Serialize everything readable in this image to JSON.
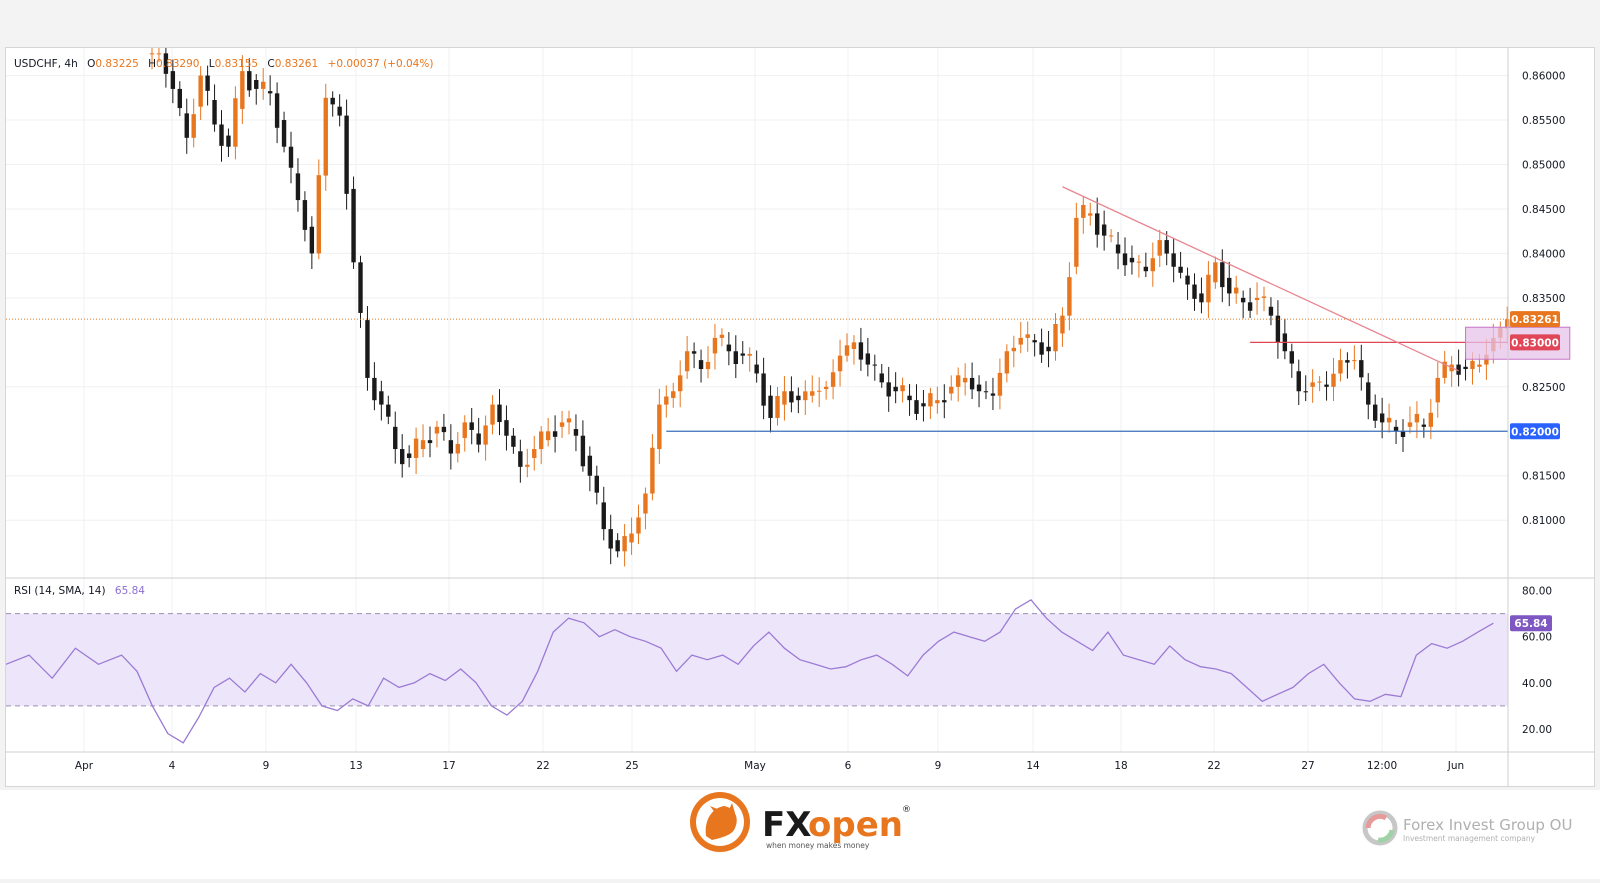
{
  "chart_data": {
    "type": "candlestick",
    "symbol": "USDCHF",
    "timeframe": "4h",
    "ohlc_header": {
      "o_label": "O",
      "o": "0.83225",
      "h_label": "H",
      "h": "0.83290",
      "l_label": "L",
      "l": "0.83155",
      "c_label": "C",
      "c": "0.83261",
      "change": "+0.00037 (+0.04%)"
    },
    "price_axis": {
      "ticks": [
        "0.86000",
        "0.85500",
        "0.85000",
        "0.84500",
        "0.84000",
        "0.83500",
        "0.82500",
        "0.81500",
        "0.81000"
      ],
      "ylim": [
        0.8035,
        0.8631
      ]
    },
    "time_axis": {
      "labels": [
        "Apr",
        "4",
        "9",
        "13",
        "17",
        "22",
        "25",
        "May",
        "6",
        "9",
        "14",
        "18",
        "22",
        "27",
        "12:00",
        "Jun"
      ]
    },
    "price_markers": [
      {
        "value": "0.83261",
        "color": "#e8761e",
        "type": "last-price"
      },
      {
        "value": "0.83000",
        "color": "#e04658",
        "type": "resistance-level"
      },
      {
        "value": "0.82000",
        "color": "#2962ff",
        "type": "support-level"
      }
    ],
    "close_series": [
      {
        "x": 0,
        "c": 0.8625
      },
      {
        "x": 2,
        "c": 0.8585
      },
      {
        "x": 4,
        "c": 0.853
      },
      {
        "x": 6,
        "c": 0.86
      },
      {
        "x": 8,
        "c": 0.8545
      },
      {
        "x": 10,
        "c": 0.852
      },
      {
        "x": 12,
        "c": 0.8605
      },
      {
        "x": 14,
        "c": 0.8585
      },
      {
        "x": 16,
        "c": 0.858
      },
      {
        "x": 18,
        "c": 0.852
      },
      {
        "x": 20,
        "c": 0.846
      },
      {
        "x": 22,
        "c": 0.84
      },
      {
        "x": 24,
        "c": 0.8575
      },
      {
        "x": 26,
        "c": 0.8555
      },
      {
        "x": 28,
        "c": 0.839
      },
      {
        "x": 30,
        "c": 0.826
      },
      {
        "x": 32,
        "c": 0.823
      },
      {
        "x": 34,
        "c": 0.818
      },
      {
        "x": 36,
        "c": 0.817
      },
      {
        "x": 38,
        "c": 0.819
      },
      {
        "x": 40,
        "c": 0.8205
      },
      {
        "x": 42,
        "c": 0.8175
      },
      {
        "x": 44,
        "c": 0.821
      },
      {
        "x": 46,
        "c": 0.8185
      },
      {
        "x": 48,
        "c": 0.823
      },
      {
        "x": 50,
        "c": 0.8195
      },
      {
        "x": 52,
        "c": 0.816
      },
      {
        "x": 54,
        "c": 0.818
      },
      {
        "x": 56,
        "c": 0.82
      },
      {
        "x": 58,
        "c": 0.821
      },
      {
        "x": 60,
        "c": 0.8195
      },
      {
        "x": 62,
        "c": 0.815
      },
      {
        "x": 64,
        "c": 0.809
      },
      {
        "x": 66,
        "c": 0.8065
      },
      {
        "x": 68,
        "c": 0.8085
      },
      {
        "x": 70,
        "c": 0.813
      },
      {
        "x": 72,
        "c": 0.823
      },
      {
        "x": 74,
        "c": 0.8245
      },
      {
        "x": 76,
        "c": 0.829
      },
      {
        "x": 78,
        "c": 0.827
      },
      {
        "x": 80,
        "c": 0.8305
      },
      {
        "x": 82,
        "c": 0.829
      },
      {
        "x": 84,
        "c": 0.8285
      },
      {
        "x": 86,
        "c": 0.8265
      },
      {
        "x": 88,
        "c": 0.8215
      },
      {
        "x": 90,
        "c": 0.8245
      },
      {
        "x": 92,
        "c": 0.8235
      },
      {
        "x": 94,
        "c": 0.8245
      },
      {
        "x": 96,
        "c": 0.825
      },
      {
        "x": 98,
        "c": 0.8285
      },
      {
        "x": 100,
        "c": 0.83
      },
      {
        "x": 102,
        "c": 0.8275
      },
      {
        "x": 104,
        "c": 0.8255
      },
      {
        "x": 106,
        "c": 0.8245
      },
      {
        "x": 108,
        "c": 0.8235
      },
      {
        "x": 110,
        "c": 0.8228
      },
      {
        "x": 112,
        "c": 0.8235
      },
      {
        "x": 114,
        "c": 0.825
      },
      {
        "x": 116,
        "c": 0.826
      },
      {
        "x": 118,
        "c": 0.8245
      },
      {
        "x": 120,
        "c": 0.824
      },
      {
        "x": 122,
        "c": 0.829
      },
      {
        "x": 124,
        "c": 0.8305
      },
      {
        "x": 126,
        "c": 0.83
      },
      {
        "x": 128,
        "c": 0.829
      },
      {
        "x": 130,
        "c": 0.833
      },
      {
        "x": 132,
        "c": 0.844
      },
      {
        "x": 134,
        "c": 0.8445
      },
      {
        "x": 136,
        "c": 0.842
      },
      {
        "x": 138,
        "c": 0.84
      },
      {
        "x": 140,
        "c": 0.839
      },
      {
        "x": 142,
        "c": 0.838
      },
      {
        "x": 144,
        "c": 0.8415
      },
      {
        "x": 146,
        "c": 0.8385
      },
      {
        "x": 148,
        "c": 0.8365
      },
      {
        "x": 150,
        "c": 0.8345
      },
      {
        "x": 152,
        "c": 0.839
      },
      {
        "x": 154,
        "c": 0.8355
      },
      {
        "x": 156,
        "c": 0.8345
      },
      {
        "x": 158,
        "c": 0.835
      },
      {
        "x": 160,
        "c": 0.833
      },
      {
        "x": 162,
        "c": 0.829
      },
      {
        "x": 164,
        "c": 0.8245
      },
      {
        "x": 166,
        "c": 0.8255
      },
      {
        "x": 168,
        "c": 0.825
      },
      {
        "x": 170,
        "c": 0.828
      },
      {
        "x": 172,
        "c": 0.828
      },
      {
        "x": 174,
        "c": 0.823
      },
      {
        "x": 176,
        "c": 0.821
      },
      {
        "x": 178,
        "c": 0.82
      },
      {
        "x": 180,
        "c": 0.821
      },
      {
        "x": 182,
        "c": 0.8205
      },
      {
        "x": 184,
        "c": 0.826
      },
      {
        "x": 186,
        "c": 0.8275
      },
      {
        "x": 188,
        "c": 0.827
      },
      {
        "x": 190,
        "c": 0.8275
      },
      {
        "x": 192,
        "c": 0.8305
      },
      {
        "x": 194,
        "c": 0.8326
      }
    ],
    "trendline": {
      "start": {
        "x": 131,
        "y": 0.8475
      },
      "end": {
        "x": 188,
        "y": 0.8268
      }
    },
    "resistance_zone": {
      "y_top": 0.8317,
      "y_bottom": 0.8281
    },
    "rsi": {
      "label": "RSI (14, SMA, 14)",
      "value": "65.84",
      "ticks": [
        "80.00",
        "60.00",
        "40.00",
        "20.00"
      ],
      "ylim": [
        10,
        85
      ],
      "upper_band": 70,
      "lower_band": 30,
      "series": [
        {
          "x": 0,
          "v": 48
        },
        {
          "x": 3,
          "v": 52
        },
        {
          "x": 6,
          "v": 42
        },
        {
          "x": 9,
          "v": 55
        },
        {
          "x": 12,
          "v": 48
        },
        {
          "x": 15,
          "v": 52
        },
        {
          "x": 17,
          "v": 45
        },
        {
          "x": 19,
          "v": 30
        },
        {
          "x": 21,
          "v": 18
        },
        {
          "x": 23,
          "v": 14
        },
        {
          "x": 25,
          "v": 25
        },
        {
          "x": 27,
          "v": 38
        },
        {
          "x": 29,
          "v": 42
        },
        {
          "x": 31,
          "v": 36
        },
        {
          "x": 33,
          "v": 44
        },
        {
          "x": 35,
          "v": 40
        },
        {
          "x": 37,
          "v": 48
        },
        {
          "x": 39,
          "v": 40
        },
        {
          "x": 41,
          "v": 30
        },
        {
          "x": 43,
          "v": 28
        },
        {
          "x": 45,
          "v": 33
        },
        {
          "x": 47,
          "v": 30
        },
        {
          "x": 49,
          "v": 42
        },
        {
          "x": 51,
          "v": 38
        },
        {
          "x": 53,
          "v": 40
        },
        {
          "x": 55,
          "v": 44
        },
        {
          "x": 57,
          "v": 41
        },
        {
          "x": 59,
          "v": 46
        },
        {
          "x": 61,
          "v": 40
        },
        {
          "x": 63,
          "v": 30
        },
        {
          "x": 65,
          "v": 26
        },
        {
          "x": 67,
          "v": 32
        },
        {
          "x": 69,
          "v": 45
        },
        {
          "x": 71,
          "v": 62
        },
        {
          "x": 73,
          "v": 68
        },
        {
          "x": 75,
          "v": 66
        },
        {
          "x": 77,
          "v": 60
        },
        {
          "x": 79,
          "v": 63
        },
        {
          "x": 81,
          "v": 60
        },
        {
          "x": 83,
          "v": 58
        },
        {
          "x": 85,
          "v": 55
        },
        {
          "x": 87,
          "v": 45
        },
        {
          "x": 89,
          "v": 52
        },
        {
          "x": 91,
          "v": 50
        },
        {
          "x": 93,
          "v": 52
        },
        {
          "x": 95,
          "v": 48
        },
        {
          "x": 97,
          "v": 56
        },
        {
          "x": 99,
          "v": 62
        },
        {
          "x": 101,
          "v": 55
        },
        {
          "x": 103,
          "v": 50
        },
        {
          "x": 105,
          "v": 48
        },
        {
          "x": 107,
          "v": 46
        },
        {
          "x": 109,
          "v": 47
        },
        {
          "x": 111,
          "v": 50
        },
        {
          "x": 113,
          "v": 52
        },
        {
          "x": 115,
          "v": 48
        },
        {
          "x": 117,
          "v": 43
        },
        {
          "x": 119,
          "v": 52
        },
        {
          "x": 121,
          "v": 58
        },
        {
          "x": 123,
          "v": 62
        },
        {
          "x": 125,
          "v": 60
        },
        {
          "x": 127,
          "v": 58
        },
        {
          "x": 129,
          "v": 62
        },
        {
          "x": 131,
          "v": 72
        },
        {
          "x": 133,
          "v": 76
        },
        {
          "x": 135,
          "v": 68
        },
        {
          "x": 137,
          "v": 62
        },
        {
          "x": 139,
          "v": 58
        },
        {
          "x": 141,
          "v": 54
        },
        {
          "x": 143,
          "v": 62
        },
        {
          "x": 145,
          "v": 52
        },
        {
          "x": 147,
          "v": 50
        },
        {
          "x": 149,
          "v": 48
        },
        {
          "x": 151,
          "v": 56
        },
        {
          "x": 153,
          "v": 50
        },
        {
          "x": 155,
          "v": 47
        },
        {
          "x": 157,
          "v": 46
        },
        {
          "x": 159,
          "v": 44
        },
        {
          "x": 161,
          "v": 38
        },
        {
          "x": 163,
          "v": 32
        },
        {
          "x": 165,
          "v": 35
        },
        {
          "x": 167,
          "v": 38
        },
        {
          "x": 169,
          "v": 44
        },
        {
          "x": 171,
          "v": 48
        },
        {
          "x": 173,
          "v": 40
        },
        {
          "x": 175,
          "v": 33
        },
        {
          "x": 177,
          "v": 32
        },
        {
          "x": 179,
          "v": 35
        },
        {
          "x": 181,
          "v": 34
        },
        {
          "x": 183,
          "v": 52
        },
        {
          "x": 185,
          "v": 57
        },
        {
          "x": 187,
          "v": 55
        },
        {
          "x": 189,
          "v": 58
        },
        {
          "x": 191,
          "v": 62
        },
        {
          "x": 193,
          "v": 65.84
        }
      ]
    }
  },
  "footer": {
    "brand": "FXopen",
    "brand_reg": "®",
    "tagline": "when money makes money",
    "partner_name": "Forex Invest Group OU",
    "partner_sub": "Investment management company"
  },
  "colors": {
    "bull": "#e8761e",
    "bear": "#1a1a1a",
    "trendline": "#e8868f",
    "resistance": "#e04658",
    "support": "#2962ff",
    "zone_fill": "#e6c3ea",
    "zone_stroke": "#c776c9",
    "rsi_line": "#9b7bd4",
    "rsi_band": "#ede6fb"
  }
}
